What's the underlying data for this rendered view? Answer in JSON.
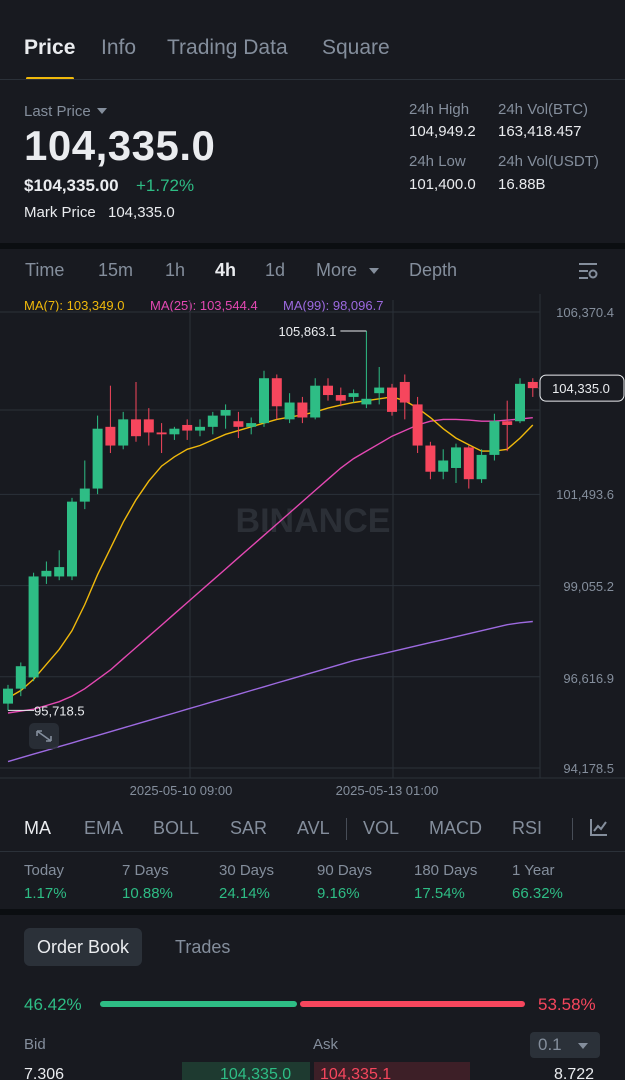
{
  "tabs": [
    "Price",
    "Info",
    "Trading Data",
    "Square"
  ],
  "header": {
    "last_price_label": "Last Price",
    "last_price": "104,335.0",
    "usd_price": "$104,335.00",
    "change_pct": "+1.72%",
    "mark_price_label": "Mark Price",
    "mark_price": "104,335.0",
    "stats": [
      {
        "label": "24h High",
        "value": "104,949.2"
      },
      {
        "label": "24h Vol(BTC)",
        "value": "163,418.457"
      },
      {
        "label": "24h Low",
        "value": "101,400.0"
      },
      {
        "label": "24h Vol(USDT)",
        "value": "16.88B"
      }
    ]
  },
  "intervals": [
    "Time",
    "15m",
    "1h",
    "4h",
    "1d",
    "More",
    "Depth"
  ],
  "active_interval": "4h",
  "ma_legend": [
    {
      "text": "MA(7): 103,349.0",
      "color": "#f0b90b"
    },
    {
      "text": "MA(25): 103,544.4",
      "color": "#e348b2"
    },
    {
      "text": "MA(99): 98,096.7",
      "color": "#9d6ae0"
    }
  ],
  "chart_data": {
    "type": "candlestick",
    "watermark": "BINANCE",
    "y_ticks": [
      "106,370.4",
      "101,493.6",
      "99,055.2",
      "96,616.9",
      "94,178.5"
    ],
    "x_ticks": [
      "2025-05-10 09:00",
      "2025-05-13 01:00"
    ],
    "ylim": [
      94178.5,
      106370.4
    ],
    "high_label": "105,863.1",
    "low_label": "95,718.5",
    "current_price_label": "104,335.0",
    "candles": [
      {
        "o": 95900,
        "h": 96400,
        "l": 95718.5,
        "c": 96300
      },
      {
        "o": 96300,
        "h": 97000,
        "l": 96100,
        "c": 96900
      },
      {
        "o": 96600,
        "h": 99400,
        "l": 96500,
        "c": 99300
      },
      {
        "o": 99300,
        "h": 99700,
        "l": 99100,
        "c": 99450
      },
      {
        "o": 99300,
        "h": 100000,
        "l": 99200,
        "c": 99550
      },
      {
        "o": 99300,
        "h": 101400,
        "l": 99200,
        "c": 101300
      },
      {
        "o": 101300,
        "h": 102400,
        "l": 101100,
        "c": 101650
      },
      {
        "o": 101650,
        "h": 103600,
        "l": 101500,
        "c": 103250
      },
      {
        "o": 103300,
        "h": 104400,
        "l": 102600,
        "c": 102800
      },
      {
        "o": 102800,
        "h": 103700,
        "l": 102700,
        "c": 103500
      },
      {
        "o": 103500,
        "h": 104500,
        "l": 102900,
        "c": 103050
      },
      {
        "o": 103500,
        "h": 103800,
        "l": 102800,
        "c": 103150
      },
      {
        "o": 103150,
        "h": 103400,
        "l": 102600,
        "c": 103100
      },
      {
        "o": 103100,
        "h": 103300,
        "l": 102950,
        "c": 103250
      },
      {
        "o": 103350,
        "h": 103500,
        "l": 102950,
        "c": 103200
      },
      {
        "o": 103200,
        "h": 103500,
        "l": 103050,
        "c": 103300
      },
      {
        "o": 103300,
        "h": 103700,
        "l": 103100,
        "c": 103600
      },
      {
        "o": 103600,
        "h": 103900,
        "l": 103250,
        "c": 103750
      },
      {
        "o": 103450,
        "h": 103700,
        "l": 103000,
        "c": 103300
      },
      {
        "o": 103300,
        "h": 103550,
        "l": 103100,
        "c": 103400
      },
      {
        "o": 103400,
        "h": 104800,
        "l": 103300,
        "c": 104600
      },
      {
        "o": 104600,
        "h": 104700,
        "l": 103500,
        "c": 103850
      },
      {
        "o": 103500,
        "h": 104200,
        "l": 103400,
        "c": 103950
      },
      {
        "o": 103950,
        "h": 104100,
        "l": 103400,
        "c": 103550
      },
      {
        "o": 103550,
        "h": 104600,
        "l": 103500,
        "c": 104400
      },
      {
        "o": 104400,
        "h": 104600,
        "l": 104000,
        "c": 104150
      },
      {
        "o": 104150,
        "h": 104350,
        "l": 103850,
        "c": 104000
      },
      {
        "o": 104100,
        "h": 104300,
        "l": 103950,
        "c": 104200
      },
      {
        "o": 103900,
        "h": 105863.1,
        "l": 103800,
        "c": 104050
      },
      {
        "o": 104200,
        "h": 104900,
        "l": 103900,
        "c": 104350
      },
      {
        "o": 104350,
        "h": 104450,
        "l": 103600,
        "c": 103700
      },
      {
        "o": 104500,
        "h": 104700,
        "l": 103500,
        "c": 103950
      },
      {
        "o": 103900,
        "h": 104100,
        "l": 102600,
        "c": 102800
      },
      {
        "o": 102800,
        "h": 102900,
        "l": 101900,
        "c": 102100
      },
      {
        "o": 102100,
        "h": 102700,
        "l": 101900,
        "c": 102400
      },
      {
        "o": 102200,
        "h": 102850,
        "l": 101800,
        "c": 102750
      },
      {
        "o": 102750,
        "h": 102800,
        "l": 101650,
        "c": 101900
      },
      {
        "o": 101900,
        "h": 102700,
        "l": 101800,
        "c": 102550
      },
      {
        "o": 102550,
        "h": 103650,
        "l": 102400,
        "c": 103450
      },
      {
        "o": 103450,
        "h": 104000,
        "l": 102650,
        "c": 103350
      },
      {
        "o": 103450,
        "h": 104600,
        "l": 103400,
        "c": 104450
      },
      {
        "o": 104500,
        "h": 104600,
        "l": 104100,
        "c": 104335
      }
    ],
    "ma7": [
      96050,
      96250,
      96550,
      96950,
      97350,
      97850,
      98550,
      99350,
      100050,
      100750,
      101350,
      101850,
      102250,
      102500,
      102700,
      102800,
      102950,
      103100,
      103200,
      103300,
      103400,
      103500,
      103560,
      103620,
      103700,
      103800,
      103880,
      103950,
      104000,
      104050,
      104100,
      104000,
      103800,
      103550,
      103250,
      103000,
      102820,
      102650,
      102650,
      102700,
      103000,
      103349
    ],
    "ma25": [
      95650,
      95700,
      95750,
      95850,
      95950,
      96100,
      96300,
      96550,
      96800,
      97100,
      97400,
      97700,
      98000,
      98300,
      98600,
      98900,
      99200,
      99500,
      99800,
      100100,
      100400,
      100700,
      101000,
      101300,
      101600,
      101900,
      102200,
      102450,
      102650,
      102850,
      103050,
      103200,
      103350,
      103450,
      103500,
      103500,
      103480,
      103450,
      103450,
      103480,
      103510,
      103544.4
    ],
    "ma99": [
      94350,
      94450,
      94550,
      94650,
      94750,
      94850,
      94950,
      95050,
      95150,
      95250,
      95350,
      95450,
      95550,
      95650,
      95750,
      95850,
      95950,
      96050,
      96150,
      96250,
      96350,
      96450,
      96550,
      96650,
      96750,
      96850,
      96950,
      97050,
      97130,
      97210,
      97290,
      97370,
      97450,
      97530,
      97610,
      97690,
      97770,
      97850,
      97930,
      98010,
      98060,
      98096.7
    ]
  },
  "indicators": [
    "MA",
    "EMA",
    "BOLL",
    "SAR",
    "AVL",
    "VOL",
    "MACD",
    "RSI"
  ],
  "performance": [
    {
      "label": "Today",
      "value": "1.17%"
    },
    {
      "label": "7 Days",
      "value": "10.88%"
    },
    {
      "label": "30 Days",
      "value": "24.14%"
    },
    {
      "label": "90 Days",
      "value": "9.16%"
    },
    {
      "label": "180 Days",
      "value": "17.54%"
    },
    {
      "label": "1 Year",
      "value": "66.32%"
    }
  ],
  "order_book": {
    "tabs": [
      "Order Book",
      "Trades"
    ],
    "bid_pct": "46.42%",
    "ask_pct": "53.58%",
    "bid_ratio": 0.4642,
    "bid_label": "Bid",
    "ask_label": "Ask",
    "precision": "0.1",
    "first_row": {
      "bid_qty": "7.306",
      "bid_price": "104,335.0",
      "ask_price": "104,335.1",
      "ask_qty": "8.722"
    }
  },
  "colors": {
    "up": "#2ebd85",
    "down": "#f6465d",
    "accent": "#f0b90b",
    "bg": "#181a20"
  }
}
